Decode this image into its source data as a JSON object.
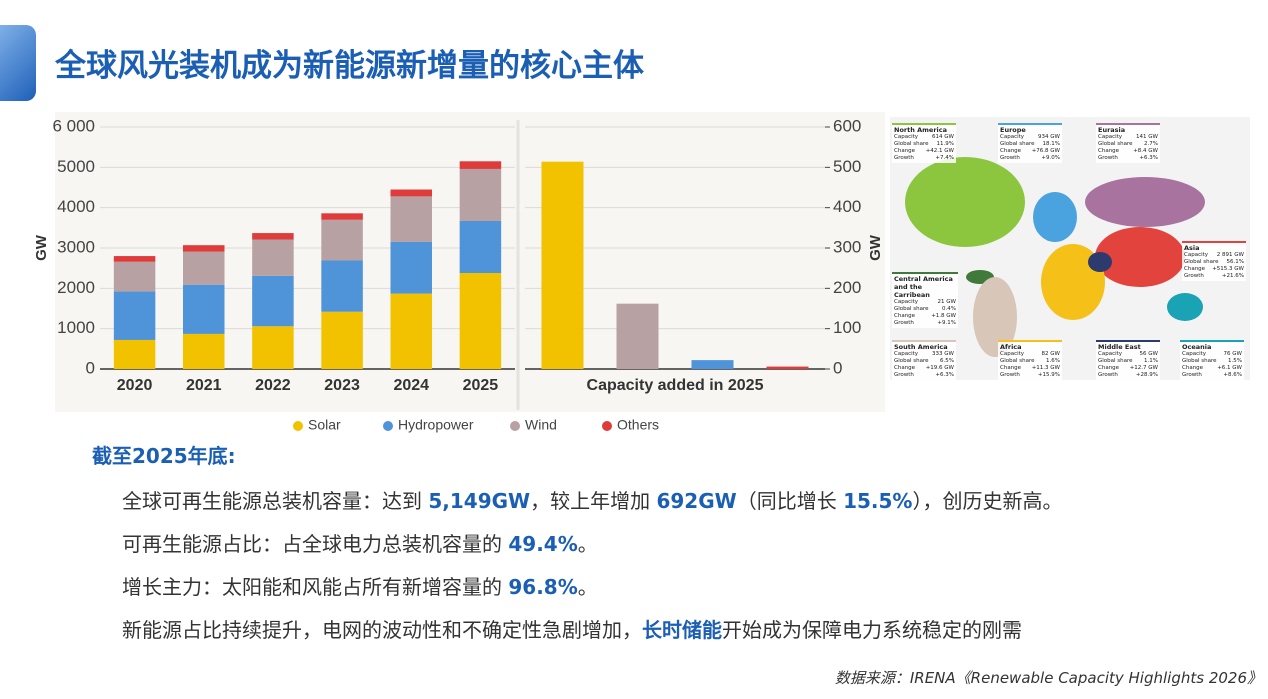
{
  "header": {
    "title": "全球风光装机成为新能源新增量的核心主体"
  },
  "chart_data": [
    {
      "type": "bar",
      "stacked": true,
      "ylabel": "GW",
      "categories": [
        "2020",
        "2021",
        "2022",
        "2023",
        "2024",
        "2025"
      ],
      "series": [
        {
          "name": "Solar",
          "color": "#f2c200",
          "values": [
            720,
            870,
            1060,
            1420,
            1870,
            2380
          ]
        },
        {
          "name": "Hydropower",
          "color": "#4f93d9",
          "values": [
            1200,
            1220,
            1250,
            1270,
            1280,
            1290
          ]
        },
        {
          "name": "Wind",
          "color": "#b7a1a3",
          "values": [
            740,
            820,
            900,
            1010,
            1130,
            1290
          ]
        },
        {
          "name": "Others",
          "color": "#e03b3b",
          "values": [
            140,
            160,
            160,
            160,
            170,
            190
          ]
        }
      ],
      "ylim": [
        0,
        6000
      ],
      "yticks": [
        0,
        {
          "value": 1000,
          "label": "1000"
        },
        {
          "value": 2000,
          "label": "2000"
        },
        {
          "value": 3000,
          "label": "3000"
        },
        {
          "value": 4000,
          "label": "4000"
        },
        {
          "value": 5000,
          "label": "5000"
        },
        {
          "value": 6000,
          "label": "6 000"
        }
      ],
      "grid": true
    },
    {
      "type": "bar",
      "xlabel": "Capacity added in 2025",
      "ylabel": "GW",
      "categories": [
        null,
        null,
        null,
        null
      ],
      "values": [
        514,
        162,
        22,
        6
      ],
      "colors": [
        "#f2c200",
        "#b7a1a3",
        "#4f93d9",
        "#e03b3b"
      ],
      "ylim": [
        0,
        600
      ],
      "yticks": [
        0,
        100,
        200,
        300,
        400,
        500,
        600
      ],
      "grid": true
    }
  ],
  "map": {
    "regions": [
      {
        "name": "North America",
        "color": "#8cc63f",
        "rows": [
          [
            "Capacity",
            "614 GW"
          ],
          [
            "Global share",
            "11.9%"
          ],
          [
            "Change",
            "+42.1 GW"
          ],
          [
            "Growth",
            "+7.4%"
          ]
        ]
      },
      {
        "name": "Europe",
        "color": "#4aa3df",
        "rows": [
          [
            "Capacity",
            "934 GW"
          ],
          [
            "Global share",
            "18.1%"
          ],
          [
            "Change",
            "+76.8 GW"
          ],
          [
            "Growth",
            "+9.0%"
          ]
        ]
      },
      {
        "name": "Eurasia",
        "color": "#a8739f",
        "rows": [
          [
            "Capacity",
            "141 GW"
          ],
          [
            "Global share",
            "2.7%"
          ],
          [
            "Change",
            "+8.4 GW"
          ],
          [
            "Growth",
            "+6.3%"
          ]
        ]
      },
      {
        "name": "Asia",
        "color": "#e2433d",
        "rows": [
          [
            "Capacity",
            "2 891 GW"
          ],
          [
            "Global share",
            "56.1%"
          ],
          [
            "Change",
            "+515.3 GW"
          ],
          [
            "Growth",
            "+21.6%"
          ]
        ]
      },
      {
        "name": "Central America and the Carribean",
        "color": "#3f7a3a",
        "rows": [
          [
            "Capacity",
            "21 GW"
          ],
          [
            "Global share",
            "0.4%"
          ],
          [
            "Change",
            "+1.8 GW"
          ],
          [
            "Growth",
            "+9.1%"
          ]
        ]
      },
      {
        "name": "South America",
        "color": "#d8c6b8",
        "rows": [
          [
            "Capacity",
            "333 GW"
          ],
          [
            "Global share",
            "6.5%"
          ],
          [
            "Change",
            "+19.6 GW"
          ],
          [
            "Growth",
            "+6.3%"
          ]
        ]
      },
      {
        "name": "Africa",
        "color": "#f5c118",
        "rows": [
          [
            "Capacity",
            "82 GW"
          ],
          [
            "Global share",
            "1.6%"
          ],
          [
            "Change",
            "+11.3 GW"
          ],
          [
            "Growth",
            "+15.9%"
          ]
        ]
      },
      {
        "name": "Middle East",
        "color": "#2d3a6e",
        "rows": [
          [
            "Capacity",
            "56 GW"
          ],
          [
            "Global share",
            "1.1%"
          ],
          [
            "Change",
            "+12.7 GW"
          ],
          [
            "Growth",
            "+28.9%"
          ]
        ]
      },
      {
        "name": "Oceania",
        "color": "#1aa2b5",
        "rows": [
          [
            "Capacity",
            "76 GW"
          ],
          [
            "Global share",
            "1.5%"
          ],
          [
            "Change",
            "+6.1 GW"
          ],
          [
            "Growth",
            "+8.6%"
          ]
        ]
      }
    ]
  },
  "summary": {
    "heading": "截至2025年底:",
    "bullets": [
      [
        {
          "text": "全球可再生能源总装机容量：达到 "
        },
        {
          "text": "5,149GW",
          "emphasis": true
        },
        {
          "text": "，较上年增加 "
        },
        {
          "text": "692GW",
          "emphasis": true
        },
        {
          "text": "（同比增长 "
        },
        {
          "text": "15.5%",
          "emphasis": true
        },
        {
          "text": "），创历史新高。"
        }
      ],
      [
        {
          "text": "可再生能源占比：占全球电力总装机容量的 "
        },
        {
          "text": "49.4%",
          "emphasis": true
        },
        {
          "text": "。"
        }
      ],
      [
        {
          "text": "增长主力：太阳能和风能占所有新增容量的 "
        },
        {
          "text": "96.8%",
          "emphasis": true
        },
        {
          "text": "。"
        }
      ],
      [
        {
          "text": "新能源占比持续提升，电网的波动性和不确定性急剧增加，"
        },
        {
          "text": "长时储能",
          "emphasis": true
        },
        {
          "text": "开始成为保障电力系统稳定的刚需"
        }
      ]
    ]
  },
  "source": "数据来源：IRENA《Renewable Capacity Highlights 2026》"
}
